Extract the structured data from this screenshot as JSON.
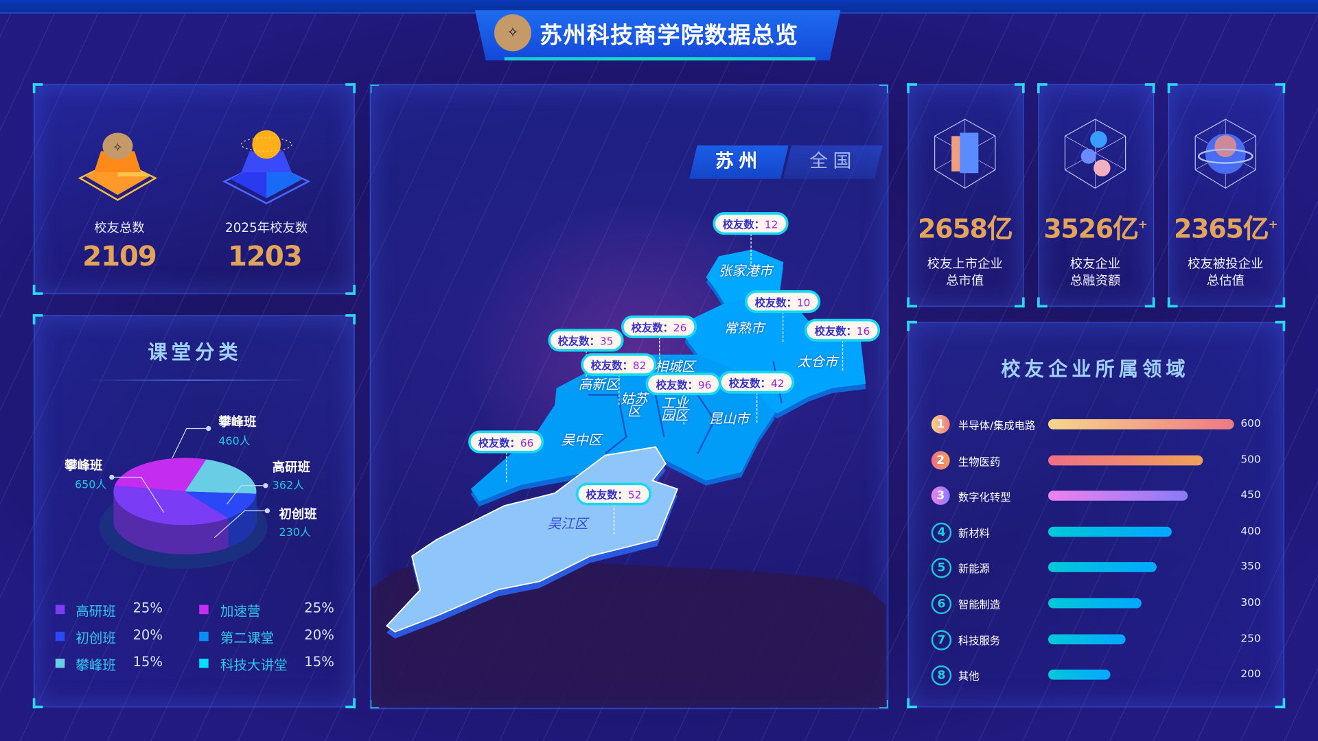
{
  "header": {
    "title": "苏州科技商学院数据总览",
    "logo": "SKS"
  },
  "alumni_stats": [
    {
      "label": "校友总数",
      "value": "2109",
      "icon": "gold-trophy-icon"
    },
    {
      "label": "2025年校友数",
      "value": "1203",
      "icon": "blue-orb-pedestal-icon"
    }
  ],
  "classroom": {
    "title": "课堂分类",
    "pie": [
      {
        "name": "攀峰班",
        "value": 460,
        "unit": "人",
        "display": "460人",
        "color": "#c42cf0"
      },
      {
        "name": "高研班",
        "value": 362,
        "unit": "人",
        "display": "362人",
        "color": "#6acde6"
      },
      {
        "name": "初创班",
        "value": 230,
        "unit": "人",
        "display": "230人",
        "color": "#2a48f5"
      },
      {
        "name": "攀峰班",
        "value": 650,
        "unit": "人",
        "display": "650人",
        "color": "#7a3cf5"
      }
    ],
    "legend": [
      {
        "label": "高研班",
        "pct": "25%",
        "color": "#7a3cf5"
      },
      {
        "label": "加速营",
        "pct": "25%",
        "color": "#c42cf0"
      },
      {
        "label": "初创班",
        "pct": "20%",
        "color": "#2a48f5"
      },
      {
        "label": "第二课堂",
        "pct": "20%",
        "color": "#0a90f5"
      },
      {
        "label": "攀峰班",
        "pct": "15%",
        "color": "#6acde6"
      },
      {
        "label": "科技大讲堂",
        "pct": "15%",
        "color": "#00e0f8"
      }
    ]
  },
  "map": {
    "tabs": [
      {
        "label": "苏州",
        "active": true
      },
      {
        "label": "全国",
        "active": false
      }
    ],
    "count_prefix": "校友数：",
    "regions": [
      {
        "name": "张家港市",
        "count": 12
      },
      {
        "name": "常熟市",
        "count": 10
      },
      {
        "name": "太仓市",
        "count": 16
      },
      {
        "name": "相城区",
        "count": 26
      },
      {
        "name": "高新区",
        "count": 35
      },
      {
        "name": "姑苏区",
        "count": 82
      },
      {
        "name": "工业园区",
        "count": 96
      },
      {
        "name": "昆山市",
        "count": 42
      },
      {
        "name": "吴中区",
        "count": 66
      },
      {
        "name": "吴江区",
        "count": 52
      }
    ]
  },
  "cards": [
    {
      "value": "2658亿",
      "plus": "",
      "label1": "校友上市企业",
      "label2": "总市值",
      "icon": "books-cube-icon"
    },
    {
      "value": "3526亿",
      "plus": "+",
      "label1": "校友企业",
      "label2": "总融资额",
      "icon": "molecule-cube-icon"
    },
    {
      "value": "2365亿",
      "plus": "+",
      "label1": "校友被投企业",
      "label2": "总估值",
      "icon": "planet-cube-icon"
    }
  ],
  "sectors": {
    "title": "校友企业所属领域",
    "max": 600,
    "items": [
      {
        "rank": "1",
        "label": "半导体/集成电路",
        "value": 600,
        "display": "600",
        "from": "#f8d68a",
        "to": "#ee7a82"
      },
      {
        "rank": "2",
        "label": "生物医药",
        "value": 500,
        "display": "500",
        "from": "#ee6e86",
        "to": "#f0a05a"
      },
      {
        "rank": "3",
        "label": "数字化转型",
        "value": 450,
        "display": "450",
        "from": "#ee82ee",
        "to": "#8a7af8"
      },
      {
        "rank": "4",
        "label": "新材料",
        "value": 400,
        "display": "400",
        "from": "#00c8d8",
        "to": "#00a8ff"
      },
      {
        "rank": "5",
        "label": "新能源",
        "value": 350,
        "display": "350",
        "from": "#00c8d8",
        "to": "#00a8ff"
      },
      {
        "rank": "6",
        "label": "智能制造",
        "value": 300,
        "display": "300",
        "from": "#00c8d8",
        "to": "#00a8ff"
      },
      {
        "rank": "7",
        "label": "科技服务",
        "value": 250,
        "display": "250",
        "from": "#00c8d8",
        "to": "#00a8ff"
      },
      {
        "rank": "8",
        "label": "其他",
        "value": 200,
        "display": "200",
        "from": "#00c8d8",
        "to": "#00a8ff"
      }
    ]
  }
}
